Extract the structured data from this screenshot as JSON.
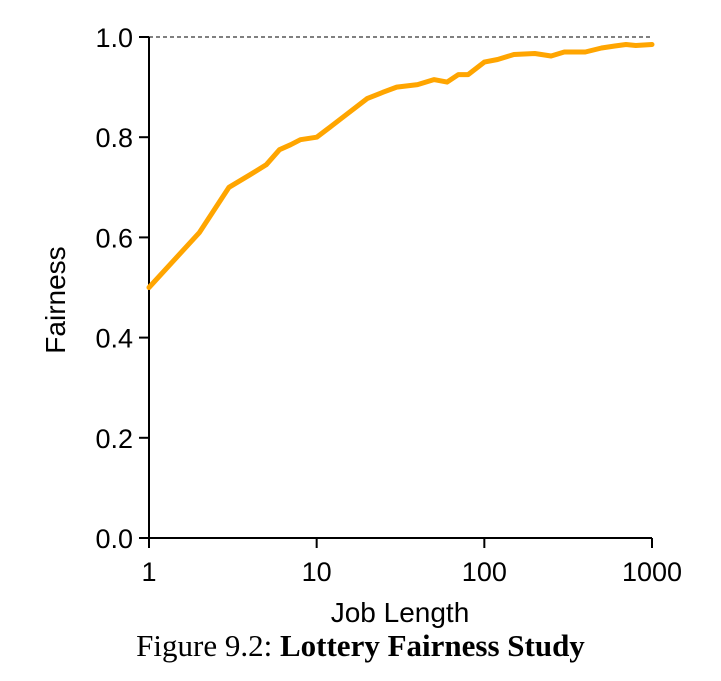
{
  "chart_data": {
    "type": "line",
    "xlabel": "Job Length",
    "ylabel": "Fairness",
    "xscale": "log",
    "xlim": [
      1,
      1000
    ],
    "ylim": [
      0.0,
      1.0
    ],
    "xticks": [
      1,
      10,
      100,
      1000
    ],
    "xtick_labels": [
      "1",
      "10",
      "100",
      "1000"
    ],
    "yticks": [
      0.0,
      0.2,
      0.4,
      0.6,
      0.8,
      1.0
    ],
    "ytick_labels": [
      "0.0",
      "0.2",
      "0.4",
      "0.6",
      "0.8",
      "1.0"
    ],
    "grid": false,
    "reference_line": {
      "y": 1.0,
      "style": "dashed"
    },
    "series": [
      {
        "color": "#FFA500",
        "x": [
          1,
          2,
          3,
          4,
          5,
          6,
          7,
          8,
          10,
          12,
          15,
          20,
          25,
          30,
          40,
          50,
          60,
          70,
          80,
          100,
          120,
          150,
          200,
          250,
          300,
          400,
          500,
          600,
          700,
          800,
          1000
        ],
        "y": [
          0.5,
          0.61,
          0.7,
          0.725,
          0.745,
          0.775,
          0.785,
          0.795,
          0.8,
          0.82,
          0.845,
          0.877,
          0.89,
          0.9,
          0.905,
          0.915,
          0.91,
          0.925,
          0.925,
          0.95,
          0.955,
          0.965,
          0.967,
          0.962,
          0.97,
          0.97,
          0.978,
          0.982,
          0.985,
          0.983,
          0.985
        ]
      }
    ]
  },
  "caption": {
    "prefix": "Figure 9.2: ",
    "title": "Lottery Fairness Study"
  }
}
